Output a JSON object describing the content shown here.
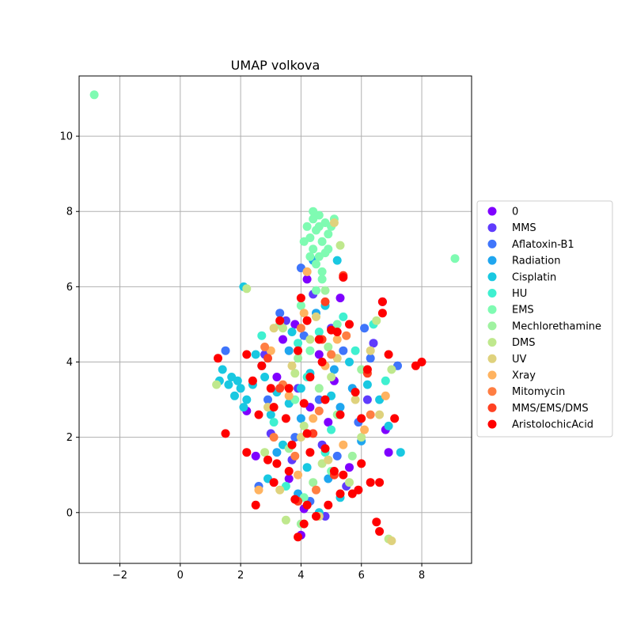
{
  "chart_data": {
    "type": "scatter",
    "title": "UMAP volkova",
    "xlabel": "",
    "ylabel": "",
    "xlim": [
      -3.35,
      9.65
    ],
    "ylim": [
      -1.35,
      11.6
    ],
    "xticks": [
      -2,
      0,
      2,
      4,
      6,
      8
    ],
    "yticks": [
      0,
      2,
      4,
      6,
      8,
      10
    ],
    "grid": true,
    "legend_position": "outside-right",
    "series": [
      {
        "name": "0",
        "color": "#7f00ff",
        "points": [
          [
            3.8,
            5.0
          ],
          [
            4.2,
            6.2
          ],
          [
            5.3,
            5.7
          ],
          [
            4.6,
            4.2
          ],
          [
            3.2,
            3.6
          ],
          [
            4.9,
            2.4
          ],
          [
            5.6,
            1.2
          ],
          [
            4.1,
            0.1
          ],
          [
            6.7,
            5.6
          ],
          [
            6.8,
            2.2
          ],
          [
            2.5,
            1.5
          ],
          [
            3.6,
            0.9
          ],
          [
            4.3,
            2.8
          ],
          [
            5.1,
            3.5
          ],
          [
            6.9,
            1.6
          ],
          [
            4.0,
            -0.6
          ],
          [
            2.2,
            2.7
          ],
          [
            3.4,
            4.6
          ]
        ]
      },
      {
        "name": "MMS",
        "color": "#5f3bfd",
        "points": [
          [
            3.5,
            5.1
          ],
          [
            4.4,
            5.8
          ],
          [
            5.0,
            4.9
          ],
          [
            3.9,
            3.3
          ],
          [
            4.7,
            1.8
          ],
          [
            5.5,
            0.7
          ],
          [
            3.0,
            2.1
          ],
          [
            6.2,
            3.0
          ],
          [
            4.8,
            -0.1
          ],
          [
            2.8,
            4.2
          ],
          [
            6.4,
            4.5
          ],
          [
            3.7,
            1.4
          ]
        ]
      },
      {
        "name": "Aflatoxin-B1",
        "color": "#3f75fb",
        "points": [
          [
            3.3,
            5.3
          ],
          [
            4.1,
            4.7
          ],
          [
            5.4,
            4.3
          ],
          [
            4.6,
            3.0
          ],
          [
            3.8,
            2.0
          ],
          [
            5.2,
            1.5
          ],
          [
            2.6,
            0.7
          ],
          [
            6.3,
            4.1
          ],
          [
            4.3,
            0.3
          ],
          [
            5.9,
            2.4
          ],
          [
            2.9,
            3.0
          ],
          [
            7.2,
            3.9
          ],
          [
            1.5,
            4.3
          ],
          [
            4.0,
            6.5
          ],
          [
            6.1,
            4.9
          ]
        ]
      },
      {
        "name": "Radiation",
        "color": "#1fa6ef",
        "points": [
          [
            3.6,
            4.3
          ],
          [
            4.5,
            5.3
          ],
          [
            5.1,
            3.8
          ],
          [
            4.0,
            2.5
          ],
          [
            5.7,
            3.3
          ],
          [
            3.2,
            1.6
          ],
          [
            4.9,
            0.9
          ],
          [
            6.0,
            1.9
          ],
          [
            2.7,
            3.9
          ],
          [
            4.4,
            6.7
          ],
          [
            5.3,
            2.8
          ],
          [
            3.9,
            0.5
          ]
        ]
      },
      {
        "name": "Cisplatin",
        "color": "#19c8e1",
        "points": [
          [
            1.6,
            3.4
          ],
          [
            1.8,
            3.1
          ],
          [
            2.0,
            3.3
          ],
          [
            1.7,
            3.6
          ],
          [
            1.4,
            3.8
          ],
          [
            2.2,
            3.0
          ],
          [
            1.9,
            3.5
          ],
          [
            2.1,
            2.8
          ],
          [
            1.3,
            3.5
          ],
          [
            2.4,
            3.4
          ],
          [
            2.8,
            3.6
          ],
          [
            3.2,
            3.2
          ],
          [
            3.6,
            2.9
          ],
          [
            4.0,
            3.3
          ],
          [
            3.0,
            2.6
          ],
          [
            2.5,
            4.2
          ],
          [
            4.3,
            3.7
          ],
          [
            5.0,
            3.1
          ],
          [
            5.6,
            4.0
          ],
          [
            6.2,
            3.4
          ],
          [
            6.6,
            3.0
          ],
          [
            3.4,
            1.8
          ],
          [
            4.2,
            1.2
          ],
          [
            5.3,
            0.4
          ],
          [
            2.9,
            0.9
          ],
          [
            7.3,
            1.6
          ],
          [
            6.9,
            2.3
          ],
          [
            2.1,
            6.0
          ],
          [
            3.7,
            4.8
          ],
          [
            4.8,
            5.5
          ],
          [
            5.2,
            6.7
          ],
          [
            4.6,
            0.0
          ]
        ]
      },
      {
        "name": "HU",
        "color": "#3ff0d0",
        "points": [
          [
            3.9,
            4.5
          ],
          [
            4.6,
            4.8
          ],
          [
            5.4,
            5.2
          ],
          [
            4.2,
            3.6
          ],
          [
            5.8,
            4.3
          ],
          [
            3.1,
            2.4
          ],
          [
            4.8,
            1.6
          ],
          [
            6.4,
            5.0
          ],
          [
            3.5,
            0.7
          ],
          [
            5.0,
            2.2
          ],
          [
            6.8,
            3.5
          ],
          [
            2.7,
            4.7
          ]
        ]
      },
      {
        "name": "EMS",
        "color": "#7ffbb2",
        "points": [
          [
            -2.85,
            11.1
          ],
          [
            9.1,
            6.75
          ],
          [
            4.4,
            8.0
          ],
          [
            4.6,
            7.9
          ],
          [
            4.8,
            7.7
          ],
          [
            4.5,
            7.5
          ],
          [
            4.3,
            7.3
          ],
          [
            4.7,
            7.2
          ],
          [
            4.9,
            7.4
          ],
          [
            4.4,
            7.0
          ],
          [
            4.6,
            6.8
          ],
          [
            4.8,
            6.9
          ],
          [
            4.2,
            7.6
          ],
          [
            5.0,
            7.6
          ],
          [
            4.5,
            6.6
          ],
          [
            4.7,
            6.4
          ],
          [
            4.3,
            6.8
          ],
          [
            4.9,
            7.0
          ],
          [
            4.6,
            7.6
          ],
          [
            4.4,
            7.8
          ],
          [
            4.1,
            7.2
          ],
          [
            5.1,
            7.8
          ],
          [
            4.7,
            6.2
          ],
          [
            4.5,
            5.9
          ],
          [
            4.0,
            5.5
          ],
          [
            5.2,
            5.0
          ],
          [
            4.3,
            4.3
          ],
          [
            3.8,
            3.0
          ],
          [
            5.0,
            1.1
          ],
          [
            4.1,
            0.4
          ]
        ]
      },
      {
        "name": "Mechlorethamine",
        "color": "#9ff2a0",
        "points": [
          [
            4.2,
            6.4
          ],
          [
            4.8,
            5.9
          ],
          [
            3.9,
            4.1
          ],
          [
            4.6,
            3.3
          ],
          [
            5.2,
            2.6
          ],
          [
            3.6,
            1.7
          ],
          [
            4.4,
            0.8
          ],
          [
            5.7,
            1.5
          ],
          [
            6.0,
            3.8
          ],
          [
            3.3,
            5.0
          ],
          [
            4.9,
            4.4
          ],
          [
            4.0,
            -0.3
          ]
        ]
      },
      {
        "name": "DMS",
        "color": "#bfe88d",
        "points": [
          [
            2.2,
            5.95
          ],
          [
            5.3,
            7.1
          ],
          [
            3.4,
            4.9
          ],
          [
            4.3,
            4.6
          ],
          [
            5.0,
            3.6
          ],
          [
            4.1,
            2.3
          ],
          [
            4.7,
            1.3
          ],
          [
            5.6,
            0.8
          ],
          [
            3.5,
            -0.2
          ],
          [
            6.5,
            5.1
          ],
          [
            6.9,
            -0.7
          ],
          [
            6.0,
            2.0
          ],
          [
            2.8,
            1.6
          ],
          [
            7.0,
            3.8
          ],
          [
            1.2,
            3.4
          ],
          [
            3.8,
            3.7
          ]
        ]
      },
      {
        "name": "UV",
        "color": "#dfd27d",
        "points": [
          [
            5.1,
            7.7
          ],
          [
            4.5,
            5.2
          ],
          [
            3.7,
            3.9
          ],
          [
            5.2,
            4.1
          ],
          [
            4.0,
            2.0
          ],
          [
            4.9,
            1.4
          ],
          [
            3.3,
            0.6
          ],
          [
            6.6,
            2.6
          ],
          [
            7.0,
            -0.75
          ],
          [
            4.6,
            -0.1
          ],
          [
            2.9,
            2.8
          ],
          [
            5.8,
            3.0
          ],
          [
            6.3,
            4.3
          ],
          [
            3.1,
            4.9
          ]
        ]
      },
      {
        "name": "Xray",
        "color": "#ffb360",
        "points": [
          [
            4.2,
            6.4
          ],
          [
            3.0,
            4.3
          ],
          [
            4.8,
            3.9
          ],
          [
            3.6,
            3.1
          ],
          [
            4.4,
            2.5
          ],
          [
            5.4,
            1.8
          ],
          [
            3.9,
            1.0
          ],
          [
            6.8,
            3.1
          ],
          [
            2.6,
            0.6
          ],
          [
            5.2,
            4.6
          ],
          [
            6.1,
            2.2
          ],
          [
            4.1,
            5.3
          ]
        ]
      },
      {
        "name": "Mitomycin",
        "color": "#ff7e42",
        "points": [
          [
            2.8,
            4.4
          ],
          [
            4.0,
            4.9
          ],
          [
            5.0,
            4.2
          ],
          [
            3.4,
            3.4
          ],
          [
            4.6,
            2.7
          ],
          [
            5.5,
            4.7
          ],
          [
            3.8,
            1.5
          ],
          [
            4.5,
            0.6
          ],
          [
            6.3,
            2.6
          ],
          [
            3.1,
            2.0
          ]
        ]
      },
      {
        "name": "MMS/EMS/DMS",
        "color": "#ff4122",
        "points": [
          [
            5.4,
            6.3
          ],
          [
            4.7,
            4.6
          ],
          [
            3.3,
            3.3
          ],
          [
            4.4,
            2.1
          ],
          [
            5.1,
            1.0
          ],
          [
            3.9,
            0.3
          ],
          [
            6.2,
            3.7
          ],
          [
            2.9,
            4.1
          ],
          [
            4.8,
            5.6
          ]
        ]
      },
      {
        "name": "AristolochicAcid",
        "color": "#ff0000",
        "points": [
          [
            1.25,
            4.1
          ],
          [
            2.2,
            4.2
          ],
          [
            2.4,
            3.5
          ],
          [
            2.7,
            3.9
          ],
          [
            3.3,
            5.1
          ],
          [
            4.0,
            5.7
          ],
          [
            4.2,
            5.1
          ],
          [
            3.9,
            4.3
          ],
          [
            4.6,
            4.6
          ],
          [
            5.4,
            6.25
          ],
          [
            5.6,
            5.0
          ],
          [
            6.7,
            5.6
          ],
          [
            6.7,
            5.3
          ],
          [
            6.9,
            4.2
          ],
          [
            7.8,
            3.9
          ],
          [
            8.0,
            4.0
          ],
          [
            6.2,
            3.8
          ],
          [
            5.8,
            3.2
          ],
          [
            5.2,
            4.8
          ],
          [
            4.7,
            4.0
          ],
          [
            4.3,
            3.6
          ],
          [
            3.6,
            3.3
          ],
          [
            3.0,
            3.3
          ],
          [
            2.6,
            2.6
          ],
          [
            3.1,
            2.8
          ],
          [
            3.5,
            2.5
          ],
          [
            4.1,
            2.9
          ],
          [
            4.8,
            3.0
          ],
          [
            5.3,
            2.6
          ],
          [
            6.0,
            2.5
          ],
          [
            4.2,
            2.1
          ],
          [
            3.7,
            1.8
          ],
          [
            3.2,
            1.3
          ],
          [
            2.9,
            1.4
          ],
          [
            3.1,
            0.8
          ],
          [
            3.6,
            1.1
          ],
          [
            4.3,
            1.6
          ],
          [
            4.8,
            1.7
          ],
          [
            5.1,
            1.1
          ],
          [
            5.4,
            1.0
          ],
          [
            5.9,
            0.6
          ],
          [
            6.3,
            0.8
          ],
          [
            6.6,
            0.8
          ],
          [
            5.7,
            0.5
          ],
          [
            5.3,
            0.5
          ],
          [
            4.9,
            0.2
          ],
          [
            4.5,
            -0.1
          ],
          [
            4.1,
            -0.3
          ],
          [
            3.9,
            -0.65
          ],
          [
            4.2,
            0.2
          ],
          [
            3.8,
            0.35
          ],
          [
            2.5,
            0.2
          ],
          [
            2.2,
            1.6
          ],
          [
            1.5,
            2.1
          ],
          [
            6.5,
            -0.25
          ],
          [
            6.6,
            -0.5
          ],
          [
            7.1,
            2.5
          ],
          [
            5.0,
            4.85
          ],
          [
            6.0,
            1.3
          ]
        ]
      }
    ]
  }
}
